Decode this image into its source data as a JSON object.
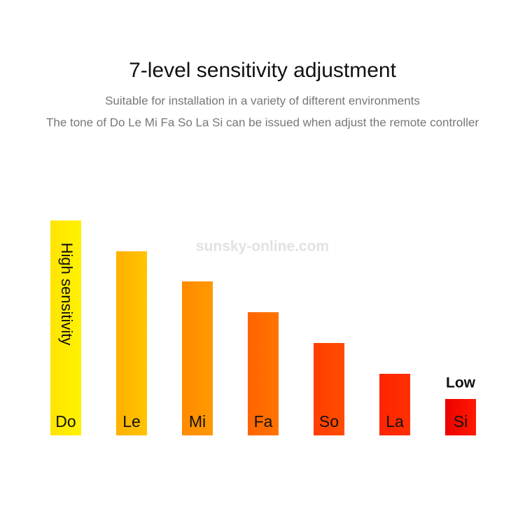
{
  "chart_data": {
    "type": "bar",
    "title": "7-level sensitivity adjustment",
    "subtitle": [
      "Suitable for installation in a variety of difterent environments",
      "The tone of Do Le Mi Fa So La Si can be issued when adjust the remote controller"
    ],
    "watermark": "sunsky-online.com",
    "annotations": {
      "high": "High sensitivity",
      "low": "Low"
    },
    "categories": [
      "Do",
      "Le",
      "Mi",
      "Fa",
      "So",
      "La",
      "Si"
    ],
    "values": [
      307,
      263,
      220,
      176,
      132,
      88,
      52
    ],
    "colors": [
      [
        "#ffe400",
        "#fff200"
      ],
      [
        "#ffb000",
        "#ffc400"
      ],
      [
        "#ff8a00",
        "#ff9a00"
      ],
      [
        "#ff6400",
        "#ff7400"
      ],
      [
        "#ff3e00",
        "#ff4c00"
      ],
      [
        "#ff2400",
        "#ff3000"
      ],
      [
        "#ee0000",
        "#ff1a00"
      ]
    ]
  }
}
